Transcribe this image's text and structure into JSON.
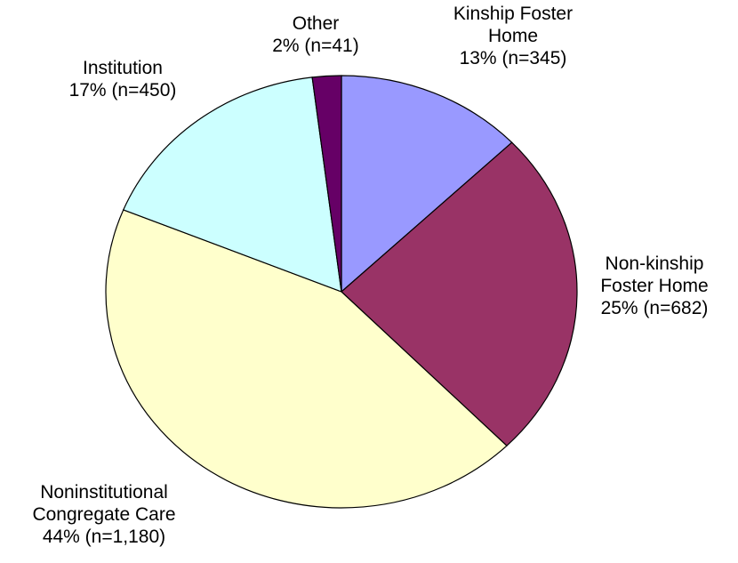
{
  "chart_data": {
    "type": "pie",
    "categories": [
      "Kinship Foster Home",
      "Non-kinship Foster Home",
      "Noninstitutional Congregate Care",
      "Institution",
      "Other"
    ],
    "values": [
      13,
      25,
      44,
      17,
      2
    ],
    "value_labels": [
      "13% (n=345)",
      "25% (n=682)",
      "44% (n=1,180)",
      "17% (n=450)",
      "2% (n=41)"
    ],
    "colors": [
      "#9999ff",
      "#993366",
      "#ffffcc",
      "#ccffff",
      "#660066"
    ]
  }
}
